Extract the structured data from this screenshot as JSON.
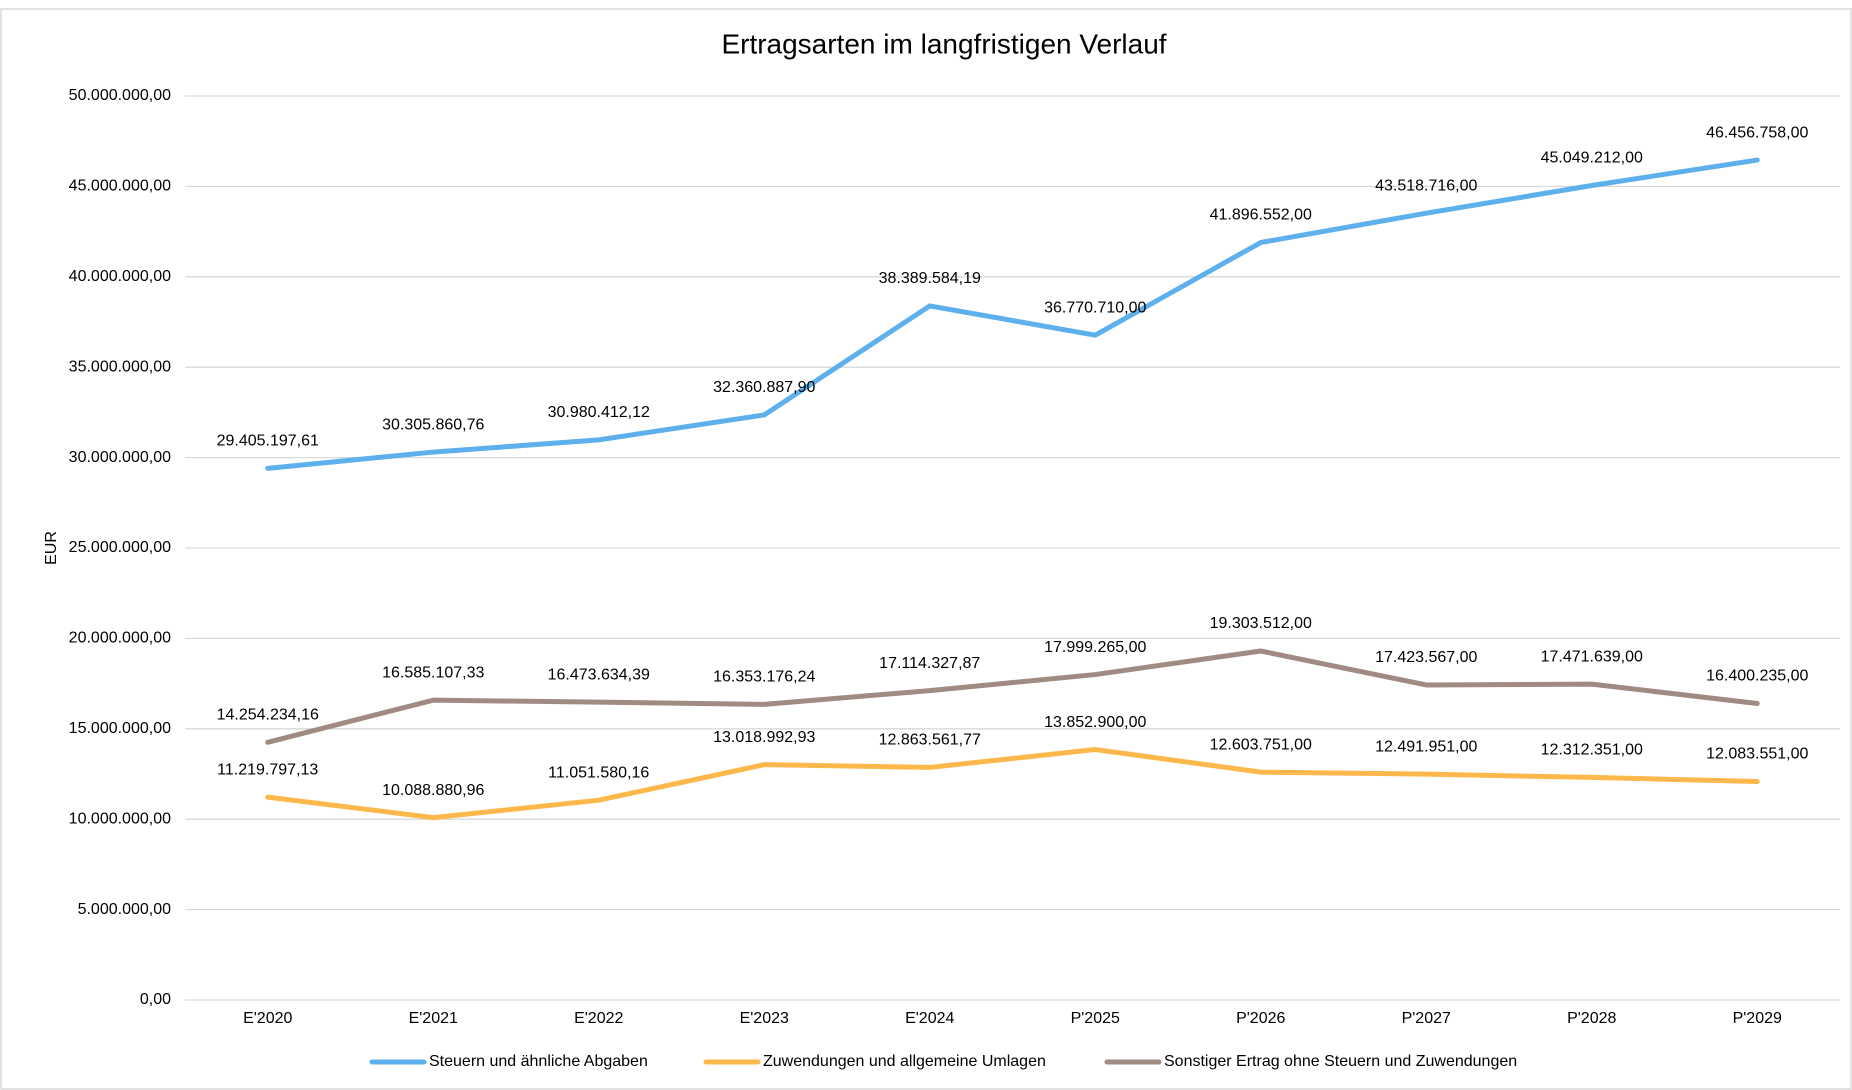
{
  "chart_data": {
    "type": "line",
    "title": "Ertragsarten im langfristigen Verlauf",
    "y_label": "EUR",
    "categories": [
      "E'2020",
      "E'2021",
      "E'2022",
      "E'2023",
      "E'2024",
      "P'2025",
      "P'2026",
      "P'2027",
      "P'2028",
      "P'2029"
    ],
    "series": [
      {
        "name": "Steuern und ähnliche Abgaben",
        "color": "#5eb0ec",
        "values": [
          29405197.61,
          30305860.76,
          30980412.12,
          32360887.9,
          38389584.19,
          36770710.0,
          41896552.0,
          43518716.0,
          45049212.0,
          46456758.0
        ],
        "value_labels": [
          "29.405.197,61",
          "30.305.860,76",
          "30.980.412,12",
          "32.360.887,90",
          "38.389.584,19",
          "36.770.710,00",
          "41.896.552,00",
          "43.518.716,00",
          "45.049.212,00",
          "46.456.758,00"
        ]
      },
      {
        "name": "Zuwendungen und allgemeine Umlagen",
        "color": "#fdb84c",
        "values": [
          11219797.13,
          10088880.96,
          11051580.16,
          13018992.93,
          12863561.77,
          13852900.0,
          12603751.0,
          12491951.0,
          12312351.0,
          12083551.0
        ],
        "value_labels": [
          "11.219.797,13",
          "10.088.880,96",
          "11.051.580,16",
          "13.018.992,93",
          "12.863.561,77",
          "13.852.900,00",
          "12.603.751,00",
          "12.491.951,00",
          "12.312.351,00",
          "12.083.551,00"
        ]
      },
      {
        "name": "Sonstiger Ertrag ohne Steuern und Zuwendungen",
        "color": "#a08a82",
        "values": [
          14254234.16,
          16585107.33,
          16473634.39,
          16353176.24,
          17114327.87,
          17999265.0,
          19303512.0,
          17423567.0,
          17471639.0,
          16400235.0
        ],
        "value_labels": [
          "14.254.234,16",
          "16.585.107,33",
          "16.473.634,39",
          "16.353.176,24",
          "17.114.327,87",
          "17.999.265,00",
          "19.303.512,00",
          "17.423.567,00",
          "17.471.639,00",
          "16.400.235,00"
        ]
      }
    ],
    "ylim": [
      0,
      50000000
    ],
    "yticks": [
      {
        "value": 0,
        "label": "0,00"
      },
      {
        "value": 5000000,
        "label": "5.000.000,00"
      },
      {
        "value": 10000000,
        "label": "10.000.000,00"
      },
      {
        "value": 15000000,
        "label": "15.000.000,00"
      },
      {
        "value": 20000000,
        "label": "20.000.000,00"
      },
      {
        "value": 25000000,
        "label": "25.000.000,00"
      },
      {
        "value": 30000000,
        "label": "30.000.000,00"
      },
      {
        "value": 35000000,
        "label": "35.000.000,00"
      },
      {
        "value": 40000000,
        "label": "40.000.000,00"
      },
      {
        "value": 45000000,
        "label": "45.000.000,00"
      },
      {
        "value": 50000000,
        "label": "50.000.000,00"
      }
    ],
    "grid": true,
    "legend": "bottom"
  }
}
